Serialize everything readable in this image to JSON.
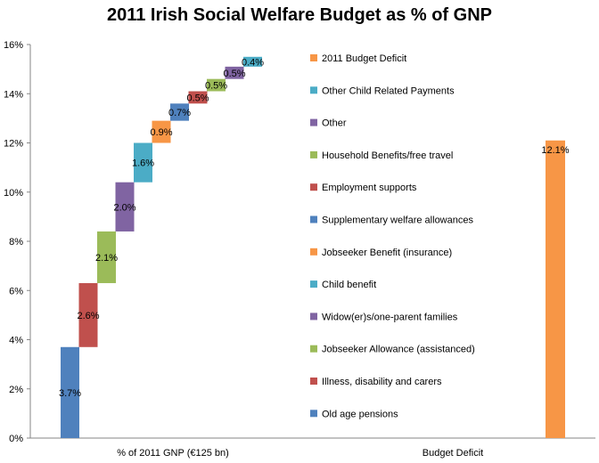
{
  "chart_data": {
    "type": "bar",
    "title": "2011 Irish Social Welfare Budget as % of GNP",
    "categories": [
      "% of 2011 GNP  (€125 bn)",
      "Budget Deficit"
    ],
    "ylim": [
      0,
      16
    ],
    "yticks": [
      "0%",
      "2%",
      "4%",
      "6%",
      "8%",
      "10%",
      "12%",
      "14%",
      "16%"
    ],
    "grid": false,
    "legend_position": "middle",
    "stacked_series": [
      {
        "name": "Old age pensions",
        "value": 3.7,
        "label": "3.7%",
        "color": "#4F81BD"
      },
      {
        "name": "Illness, disability and carers",
        "value": 2.6,
        "label": "2.6%",
        "color": "#C0504D"
      },
      {
        "name": "Jobseeker Allowance (assistanced)",
        "value": 2.1,
        "label": "2.1%",
        "color": "#9BBB59"
      },
      {
        "name": "Widow(er)s/one-parent families",
        "value": 2.0,
        "label": "2.0%",
        "color": "#8064A2"
      },
      {
        "name": "Child benefit",
        "value": 1.6,
        "label": "1.6%",
        "color": "#4BACC6"
      },
      {
        "name": "Jobseeker Benefit (insurance)",
        "value": 0.9,
        "label": "0.9%",
        "color": "#F79646"
      },
      {
        "name": "Supplementary welfare allowances",
        "value": 0.7,
        "label": "0.7%",
        "color": "#4F81BD"
      },
      {
        "name": "Employment supports",
        "value": 0.5,
        "label": "0.5%",
        "color": "#C0504D"
      },
      {
        "name": "Household Benefits/free travel",
        "value": 0.5,
        "label": "0.5%",
        "color": "#9BBB59"
      },
      {
        "name": "Other",
        "value": 0.5,
        "label": "0.5%",
        "color": "#8064A2"
      },
      {
        "name": "Other Child Related Payments",
        "value": 0.4,
        "label": "0.4%",
        "color": "#4BACC6"
      }
    ],
    "deficit": {
      "name": "2011 Budget Deficit",
      "value": 12.1,
      "label": "12.1%",
      "color": "#F79646"
    }
  }
}
